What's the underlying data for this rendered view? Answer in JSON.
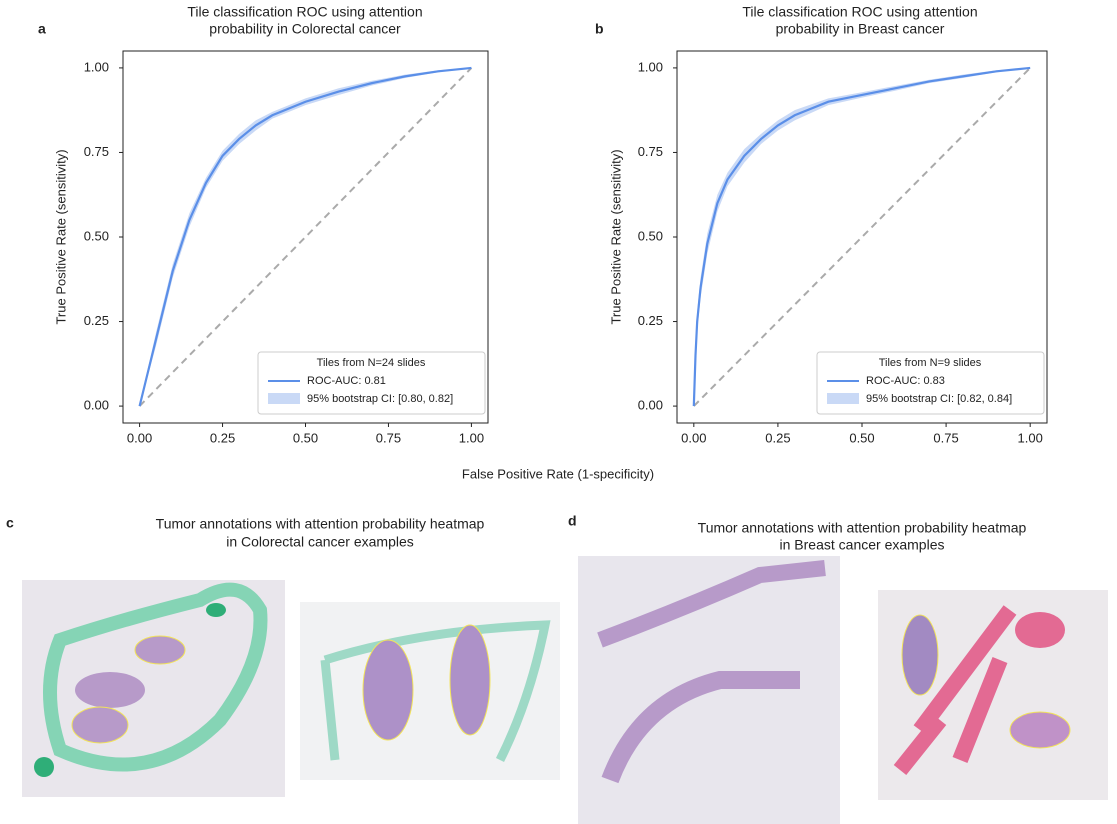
{
  "panel_labels": [
    "a",
    "b",
    "c",
    "d"
  ],
  "x_axis_label": "False Positive Rate (1-specificity)",
  "chart_data": [
    {
      "type": "line",
      "title": [
        "Tile classification ROC using attention",
        "probability in Colorectal cancer"
      ],
      "ylabel": "True Positive Rate (sensitivity)",
      "xlim": [
        -0.05,
        1.05
      ],
      "ylim": [
        -0.05,
        1.05
      ],
      "xticks": [
        {
          "value": 0,
          "label": "0.00"
        },
        {
          "value": 0.25,
          "label": "0.25"
        },
        {
          "value": 0.5,
          "label": "0.50"
        },
        {
          "value": 0.75,
          "label": "0.75"
        },
        {
          "value": 1,
          "label": "1.00"
        }
      ],
      "yticks": [
        {
          "value": 0,
          "label": "0.00"
        },
        {
          "value": 0.25,
          "label": "0.25"
        },
        {
          "value": 0.5,
          "label": "0.50"
        },
        {
          "value": 0.75,
          "label": "0.75"
        },
        {
          "value": 1,
          "label": "1.00"
        }
      ],
      "legend_title": "Tiles from N=24 slides",
      "x": [
        0,
        0.02,
        0.05,
        0.1,
        0.15,
        0.2,
        0.25,
        0.3,
        0.35,
        0.4,
        0.5,
        0.6,
        0.7,
        0.8,
        0.9,
        1
      ],
      "series": [
        {
          "name": "ROC-AUC: 0.81",
          "color": "#5b8fe8",
          "values": [
            0,
            0.08,
            0.2,
            0.4,
            0.55,
            0.66,
            0.74,
            0.79,
            0.83,
            0.86,
            0.9,
            0.93,
            0.955,
            0.975,
            0.99,
            1
          ]
        }
      ],
      "band": {
        "name": "95% bootstrap CI: [0.80, 0.82]",
        "color": "#c9d9f6",
        "lower": [
          0,
          0.07,
          0.18,
          0.38,
          0.53,
          0.645,
          0.725,
          0.775,
          0.815,
          0.85,
          0.89,
          0.92,
          0.948,
          0.97,
          0.987,
          1
        ],
        "upper": [
          0,
          0.09,
          0.22,
          0.42,
          0.57,
          0.675,
          0.755,
          0.805,
          0.845,
          0.87,
          0.91,
          0.94,
          0.962,
          0.98,
          0.993,
          1
        ]
      }
    },
    {
      "type": "line",
      "title": [
        "Tile classification ROC using attention",
        "probability in Breast cancer"
      ],
      "ylabel": "True Positive Rate (sensitivity)",
      "xlim": [
        -0.05,
        1.05
      ],
      "ylim": [
        -0.05,
        1.05
      ],
      "xticks": [
        {
          "value": 0,
          "label": "0.00"
        },
        {
          "value": 0.25,
          "label": "0.25"
        },
        {
          "value": 0.5,
          "label": "0.50"
        },
        {
          "value": 0.75,
          "label": "0.75"
        },
        {
          "value": 1,
          "label": "1.00"
        }
      ],
      "yticks": [
        {
          "value": 0,
          "label": "0.00"
        },
        {
          "value": 0.25,
          "label": "0.25"
        },
        {
          "value": 0.5,
          "label": "0.50"
        },
        {
          "value": 0.75,
          "label": "0.75"
        },
        {
          "value": 1,
          "label": "1.00"
        }
      ],
      "legend_title": "Tiles from N=9 slides",
      "x": [
        0,
        0.005,
        0.01,
        0.02,
        0.04,
        0.07,
        0.1,
        0.15,
        0.2,
        0.25,
        0.3,
        0.4,
        0.5,
        0.6,
        0.7,
        0.8,
        0.9,
        1
      ],
      "series": [
        {
          "name": "ROC-AUC: 0.83",
          "color": "#5b8fe8",
          "values": [
            0,
            0.15,
            0.25,
            0.35,
            0.48,
            0.6,
            0.67,
            0.74,
            0.79,
            0.83,
            0.86,
            0.9,
            0.92,
            0.94,
            0.96,
            0.975,
            0.99,
            1
          ]
        }
      ],
      "band": {
        "name": "95% bootstrap CI: [0.82, 0.84]",
        "color": "#c9d9f6",
        "lower": [
          0,
          0.12,
          0.22,
          0.32,
          0.45,
          0.575,
          0.65,
          0.72,
          0.775,
          0.815,
          0.845,
          0.89,
          0.912,
          0.933,
          0.955,
          0.97,
          0.987,
          1
        ],
        "upper": [
          0,
          0.18,
          0.28,
          0.38,
          0.51,
          0.625,
          0.69,
          0.76,
          0.805,
          0.845,
          0.875,
          0.91,
          0.928,
          0.947,
          0.965,
          0.98,
          0.993,
          1
        ]
      }
    }
  ],
  "examples": [
    {
      "title": [
        "Tumor annotations with attention probability heatmap",
        "in Colorectal cancer examples"
      ]
    },
    {
      "title": [
        "Tumor annotations with attention probability heatmap",
        "in Breast cancer examples"
      ]
    }
  ]
}
